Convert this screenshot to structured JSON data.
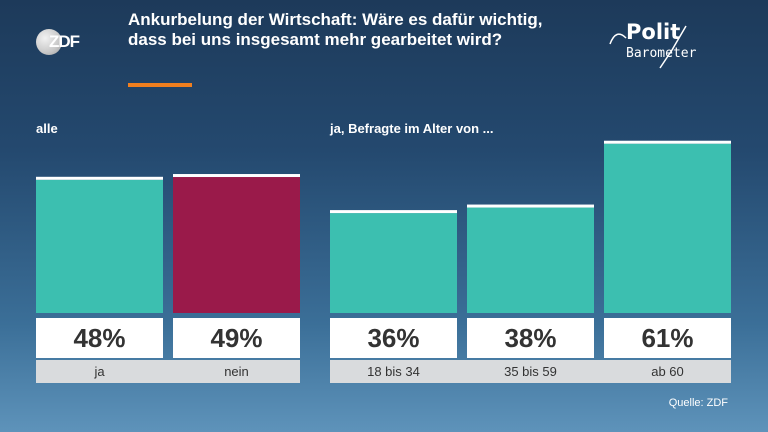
{
  "broadcaster": "ZDF",
  "brand": {
    "line1": "Polit",
    "line2": "Barometer"
  },
  "title": "Ankurbelung der Wirtschaft: Wäre es dafür wichtig, dass bei uns insgesamt mehr gearbeitet wird?",
  "source": "Quelle: ZDF",
  "colors": {
    "accent": "#f07f1e",
    "yes": "#3cbfb0",
    "no": "#9a1a4a",
    "label_band": "#d9dbdd"
  },
  "chart_data": {
    "type": "bar",
    "unit": "%",
    "ylim": [
      0,
      100
    ],
    "groups": [
      {
        "label": "alle",
        "categories": [
          "ja",
          "nein"
        ],
        "values": [
          48,
          49
        ],
        "colors": [
          "#3cbfb0",
          "#9a1a4a"
        ]
      },
      {
        "label": "ja, Befragte im Alter von ...",
        "categories": [
          "18 bis 34",
          "35 bis 59",
          "ab 60"
        ],
        "values": [
          36,
          38,
          61
        ],
        "colors": [
          "#3cbfb0",
          "#3cbfb0",
          "#3cbfb0"
        ]
      }
    ]
  }
}
